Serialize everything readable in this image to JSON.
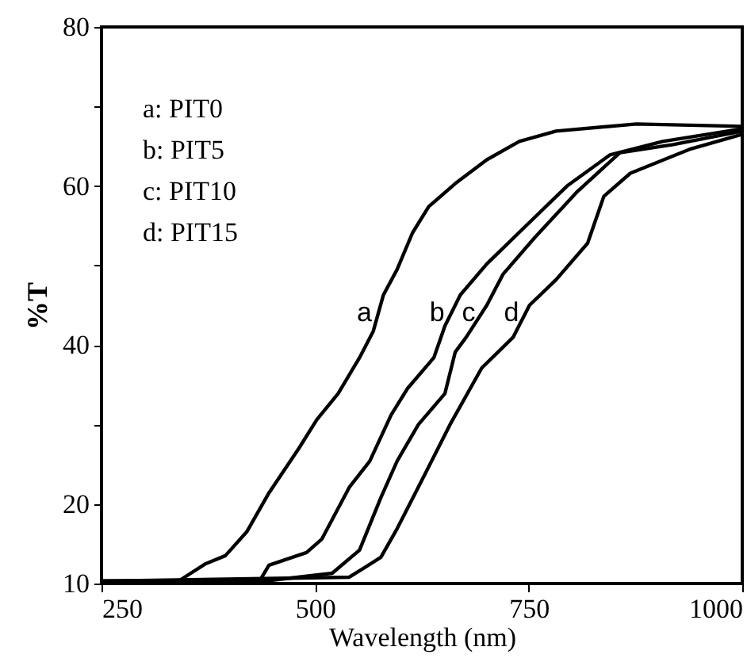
{
  "chart_data": {
    "type": "line",
    "xlabel": "Wavelength (nm)",
    "ylabel": "%T",
    "xlim": [
      250,
      1000
    ],
    "ylim": [
      10,
      80
    ],
    "xticks": [
      250,
      500,
      750,
      1000
    ],
    "yticks": [
      10,
      20,
      {
        "value": 30,
        "label": null
      },
      40,
      {
        "value": 50,
        "label": null
      },
      60,
      {
        "value": 70,
        "label": null
      },
      80
    ],
    "grid": false,
    "marker": "none",
    "line_style": "solid",
    "series": [
      {
        "color": "#000000",
        "x": [
          250,
          340,
          372,
          395,
          420,
          446,
          481,
          502,
          527,
          552,
          568,
          580,
          596,
          614,
          633,
          664,
          701,
          739,
          782,
          876,
          1000
        ],
        "values": [
          10.3,
          10.3,
          12.5,
          13.5,
          16.5,
          21.4,
          27.0,
          30.6,
          33.9,
          38.4,
          41.7,
          46.3,
          49.5,
          54.1,
          57.4,
          60.3,
          63.3,
          65.6,
          66.9,
          67.8,
          67.5
        ]
      },
      {
        "color": "#000000",
        "x": [
          250,
          435,
          446,
          490,
          508,
          540,
          564,
          589,
          608,
          639,
          652,
          670,
          701,
          745,
          795,
          845,
          907,
          1000
        ],
        "values": [
          10.3,
          10.3,
          12.3,
          13.9,
          15.6,
          22.1,
          25.4,
          31.2,
          34.5,
          38.4,
          42.4,
          46.3,
          50.2,
          54.8,
          60.0,
          63.9,
          65.6,
          67.2
        ]
      },
      {
        "color": "#000000",
        "x": [
          250,
          440,
          520,
          552,
          577,
          596,
          621,
          652,
          664,
          677,
          701,
          720,
          757,
          807,
          857,
          919,
          1000
        ],
        "values": [
          10.3,
          10.3,
          11.3,
          14.2,
          20.8,
          25.4,
          30.0,
          33.9,
          39.1,
          41.0,
          45.0,
          48.9,
          53.5,
          59.3,
          64.2,
          65.2,
          66.9
        ]
      },
      {
        "color": "#000000",
        "x": [
          250,
          540,
          558,
          577,
          596,
          627,
          658,
          695,
          732,
          751,
          782,
          819,
          838,
          869,
          938,
          1000
        ],
        "values": [
          10.3,
          10.8,
          12.0,
          13.3,
          16.9,
          23.4,
          30.0,
          37.1,
          41.0,
          45.0,
          48.2,
          52.8,
          58.7,
          61.6,
          64.6,
          66.5
        ]
      }
    ],
    "annotations": [
      "a: PIT0",
      "b: PIT5",
      "c: PIT10",
      "d: PIT15",
      {
        "text": "a",
        "x": 574,
        "y": 44
      },
      {
        "text": "b",
        "x": 659,
        "y": 44
      },
      {
        "text": "c",
        "x": 695,
        "y": 44
      },
      {
        "text": "d",
        "x": 746,
        "y": 44
      }
    ]
  }
}
